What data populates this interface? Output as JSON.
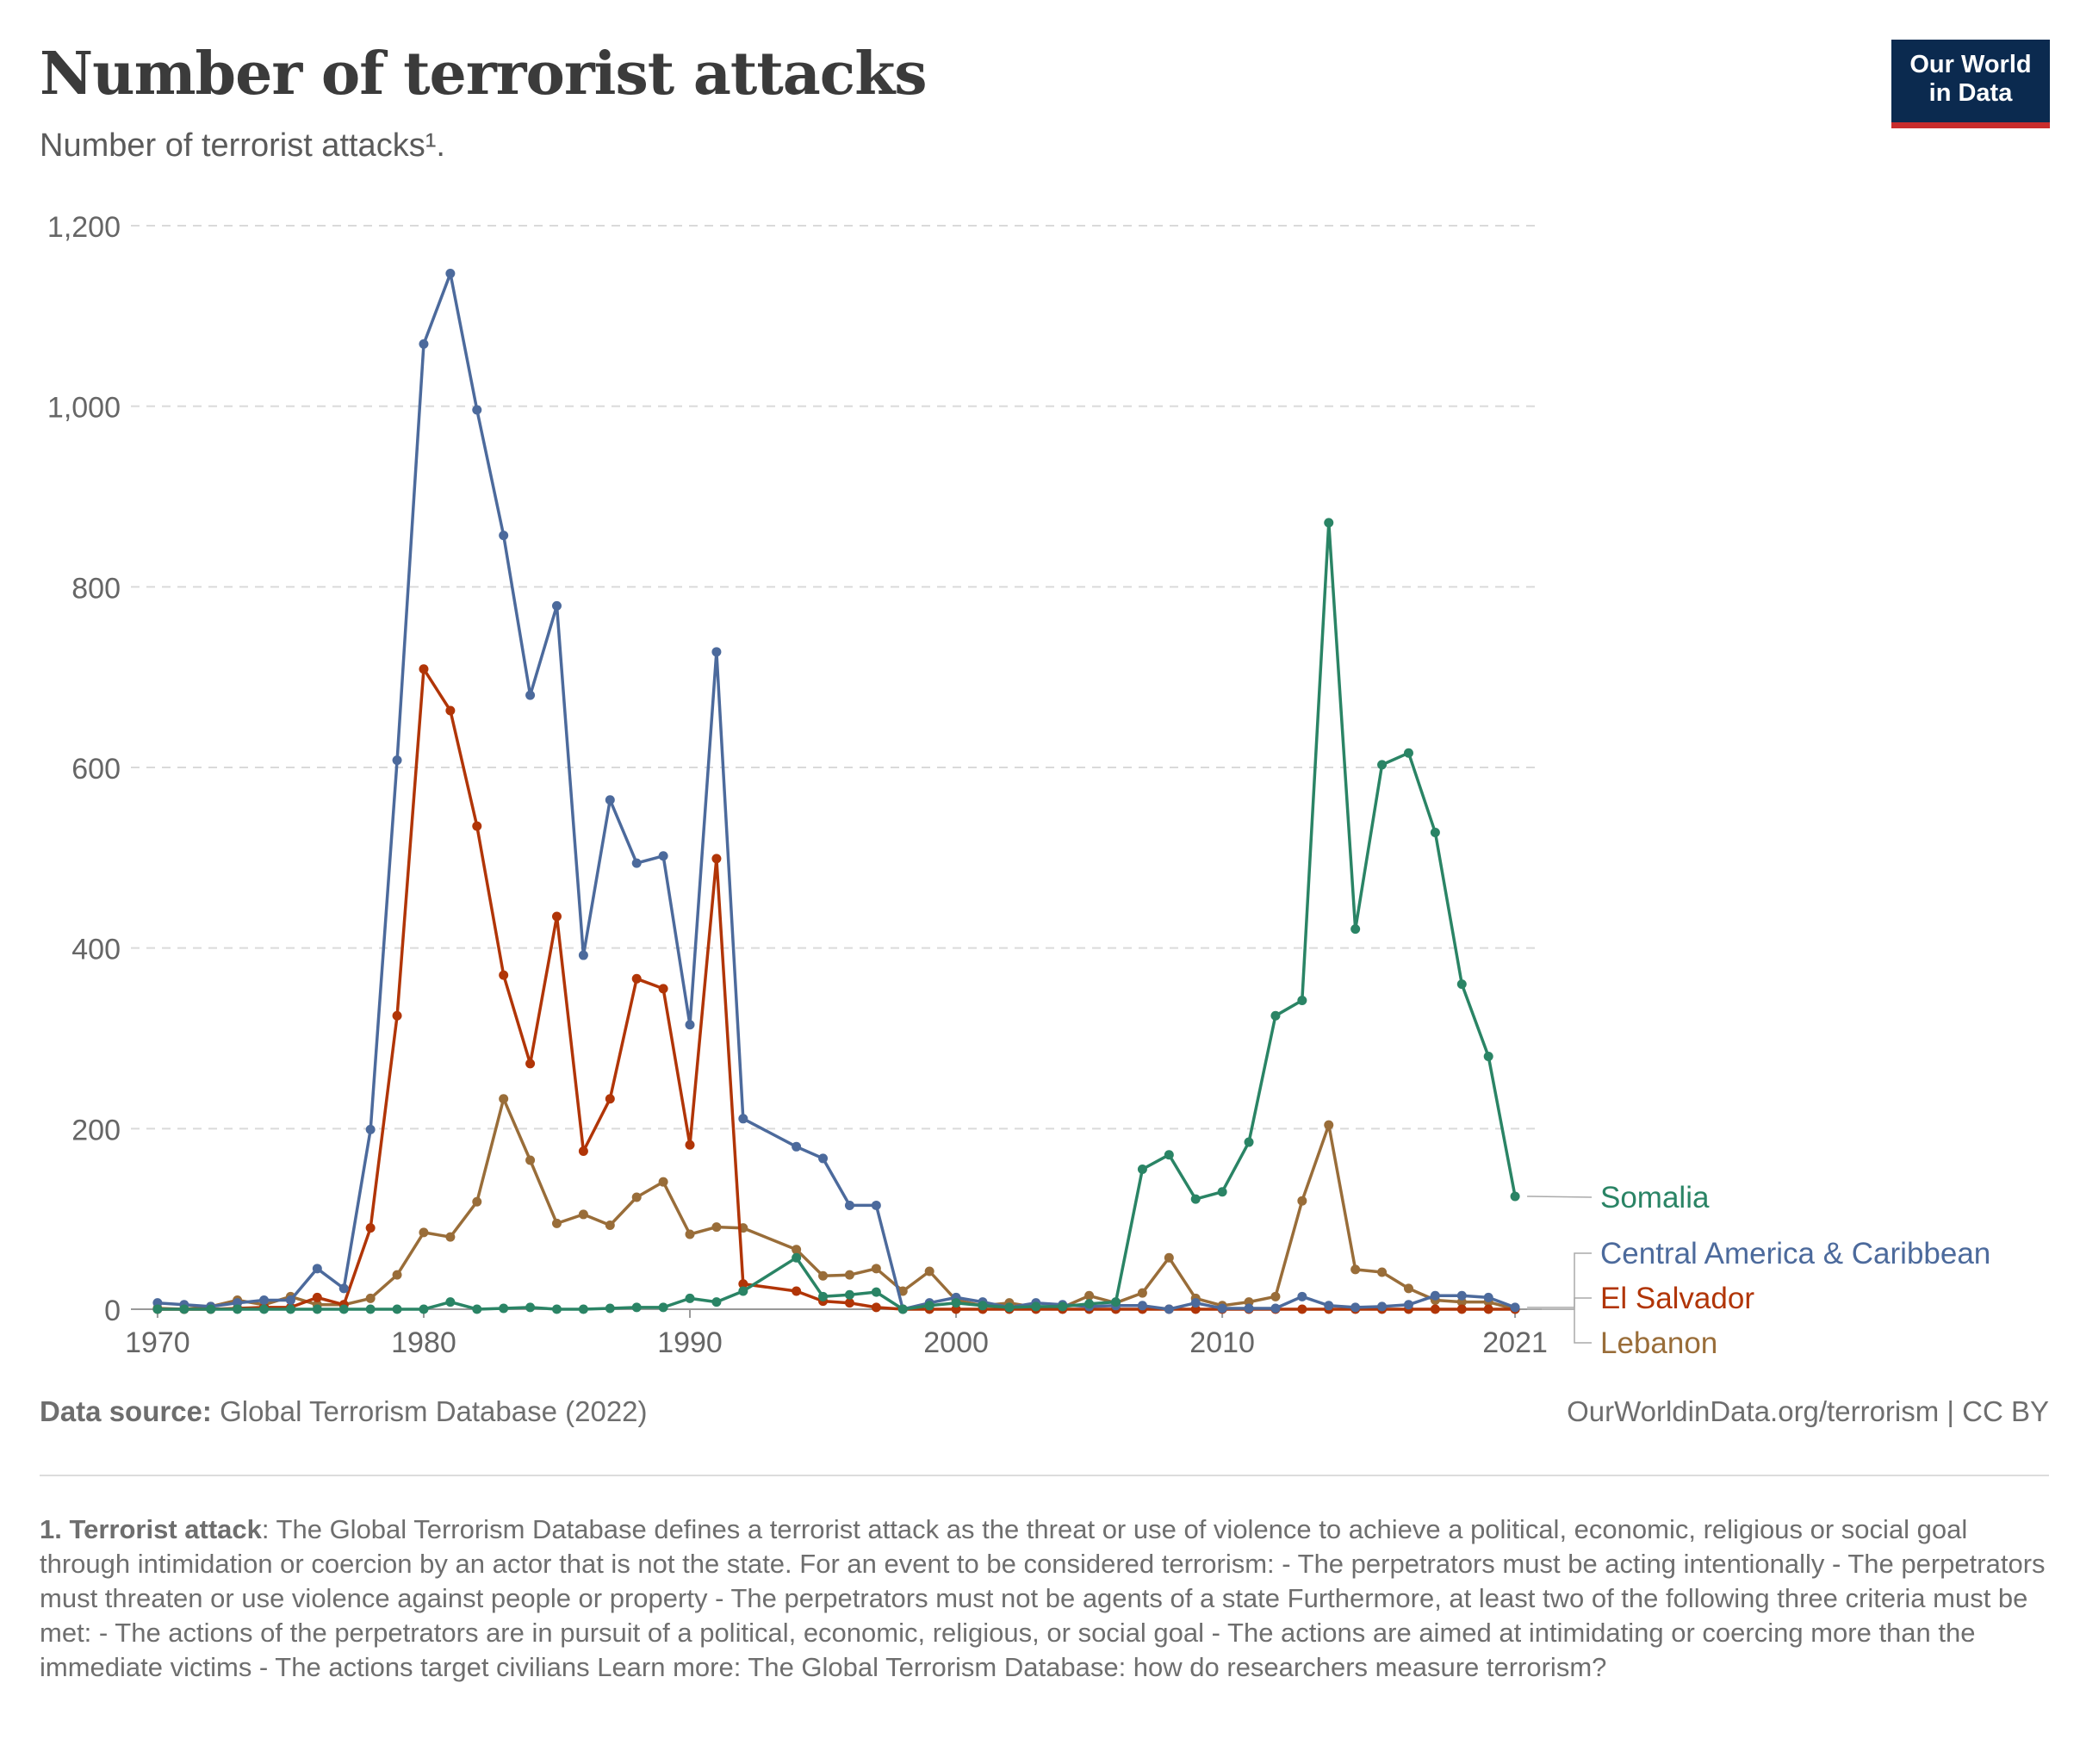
{
  "header": {
    "title": "Number of terrorist attacks",
    "subtitle": "Number of terrorist attacks¹.",
    "logo_line1": "Our World",
    "logo_line2": "in Data"
  },
  "footer": {
    "source_label": "Data source:",
    "source_text": "Global Terrorism Database (2022)",
    "credit": "OurWorldinData.org/terrorism | CC BY",
    "note_label": "1. Terrorist attack",
    "note_text": ": The Global Terrorism Database defines a terrorist attack as the threat or use of violence to achieve a political, economic, religious or social goal through intimidation or coercion by an actor that is not the state. For an event to be considered terrorism: - The perpetrators must be acting intentionally - The perpetrators must threaten or use violence against people or property - The perpetrators must not be agents of a state Furthermore, at least two of the following three criteria must be met: - The actions of the perpetrators are in pursuit of a political, economic, religious, or social goal - The actions are aimed at intimidating or coercing more than the immediate victims - The actions target civilians Learn more: The Global Terrorism Database: how do researchers measure terrorism?"
  },
  "chart_data": {
    "type": "line",
    "title": "Number of terrorist attacks",
    "subtitle": "Number of terrorist attacks¹.",
    "xlim": [
      1970,
      2021
    ],
    "ylim": [
      0,
      1200
    ],
    "yticks": [
      0,
      200,
      400,
      600,
      800,
      1000,
      1200
    ],
    "ytick_labels": [
      "0",
      "200",
      "400",
      "600",
      "800",
      "1,000",
      "1,200"
    ],
    "xticks": [
      1970,
      1980,
      1990,
      2000,
      2010,
      2021
    ],
    "xtick_labels": [
      "1970",
      "1980",
      "1990",
      "2000",
      "2010",
      "2021"
    ],
    "grid": "horizontal dashed",
    "legend": "right, line labels",
    "series": [
      {
        "name": "Somalia",
        "color": "#2a8465",
        "x": [
          1970,
          1971,
          1972,
          1973,
          1974,
          1975,
          1976,
          1977,
          1978,
          1979,
          1980,
          1981,
          1982,
          1983,
          1984,
          1985,
          1986,
          1987,
          1988,
          1989,
          1990,
          1991,
          1992,
          1994,
          1995,
          1996,
          1997,
          1998,
          1999,
          2000,
          2001,
          2002,
          2003,
          2004,
          2005,
          2006,
          2007,
          2008,
          2009,
          2010,
          2011,
          2012,
          2013,
          2014,
          2015,
          2016,
          2017,
          2018,
          2019,
          2020,
          2021
        ],
        "values": [
          0,
          0,
          0,
          0,
          0,
          0,
          0,
          0,
          0,
          0,
          0,
          8,
          0,
          1,
          2,
          0,
          0,
          1,
          2,
          2,
          12,
          8,
          20,
          57,
          14,
          16,
          19,
          0,
          4,
          7,
          4,
          2,
          3,
          3,
          6,
          8,
          155,
          171,
          122,
          130,
          185,
          325,
          342,
          871,
          421,
          603,
          616,
          528,
          360,
          280,
          125
        ]
      },
      {
        "name": "Central America & Caribbean",
        "color": "#4c6a9c",
        "x": [
          1970,
          1971,
          1972,
          1973,
          1974,
          1975,
          1976,
          1977,
          1978,
          1979,
          1980,
          1981,
          1982,
          1983,
          1984,
          1985,
          1986,
          1987,
          1988,
          1989,
          1990,
          1991,
          1992,
          1994,
          1995,
          1996,
          1997,
          1998,
          1999,
          2000,
          2001,
          2002,
          2003,
          2004,
          2005,
          2006,
          2007,
          2008,
          2009,
          2010,
          2011,
          2012,
          2013,
          2014,
          2015,
          2016,
          2017,
          2018,
          2019,
          2020,
          2021
        ],
        "values": [
          7,
          5,
          3,
          7,
          10,
          10,
          45,
          23,
          199,
          608,
          1069,
          1147,
          996,
          857,
          680,
          779,
          392,
          564,
          494,
          502,
          315,
          728,
          211,
          180,
          167,
          115,
          115,
          0,
          7,
          13,
          8,
          2,
          7,
          5,
          3,
          4,
          4,
          0,
          7,
          1,
          1,
          1,
          14,
          4,
          2,
          3,
          5,
          15,
          15,
          13,
          2
        ]
      },
      {
        "name": "El Salvador",
        "color": "#b13507",
        "x": [
          1970,
          1971,
          1972,
          1973,
          1974,
          1975,
          1976,
          1977,
          1978,
          1979,
          1980,
          1981,
          1982,
          1983,
          1984,
          1985,
          1986,
          1987,
          1988,
          1989,
          1990,
          1991,
          1992,
          1994,
          1995,
          1996,
          1997,
          1998,
          1999,
          2000,
          2001,
          2002,
          2003,
          2004,
          2005,
          2006,
          2007,
          2008,
          2009,
          2010,
          2011,
          2012,
          2013,
          2014,
          2015,
          2016,
          2017,
          2018,
          2019,
          2020,
          2021
        ],
        "values": [
          0,
          0,
          0,
          1,
          2,
          2,
          13,
          5,
          90,
          325,
          709,
          663,
          535,
          370,
          272,
          435,
          175,
          233,
          366,
          355,
          182,
          499,
          28,
          20,
          9,
          7,
          2,
          0,
          0,
          0,
          0,
          0,
          0,
          0,
          0,
          0,
          0,
          0,
          0,
          0,
          0,
          0,
          0,
          0,
          0,
          0,
          0,
          0,
          0,
          0,
          0
        ]
      },
      {
        "name": "Lebanon",
        "color": "#996d39",
        "x": [
          1970,
          1971,
          1972,
          1973,
          1974,
          1975,
          1976,
          1977,
          1978,
          1979,
          1980,
          1981,
          1982,
          1983,
          1984,
          1985,
          1986,
          1987,
          1988,
          1989,
          1990,
          1991,
          1992,
          1994,
          1995,
          1996,
          1997,
          1998,
          1999,
          2000,
          2001,
          2002,
          2003,
          2004,
          2005,
          2006,
          2007,
          2008,
          2009,
          2010,
          2011,
          2012,
          2013,
          2014,
          2015,
          2016,
          2017,
          2018,
          2019,
          2020,
          2021
        ],
        "values": [
          1,
          0,
          3,
          10,
          5,
          14,
          5,
          5,
          12,
          38,
          85,
          80,
          119,
          233,
          165,
          95,
          105,
          93,
          124,
          141,
          83,
          91,
          90,
          66,
          37,
          38,
          45,
          20,
          42,
          10,
          4,
          7,
          2,
          2,
          15,
          7,
          18,
          57,
          12,
          4,
          8,
          14,
          120,
          204,
          44,
          41,
          23,
          10,
          8,
          8,
          0
        ]
      }
    ]
  }
}
